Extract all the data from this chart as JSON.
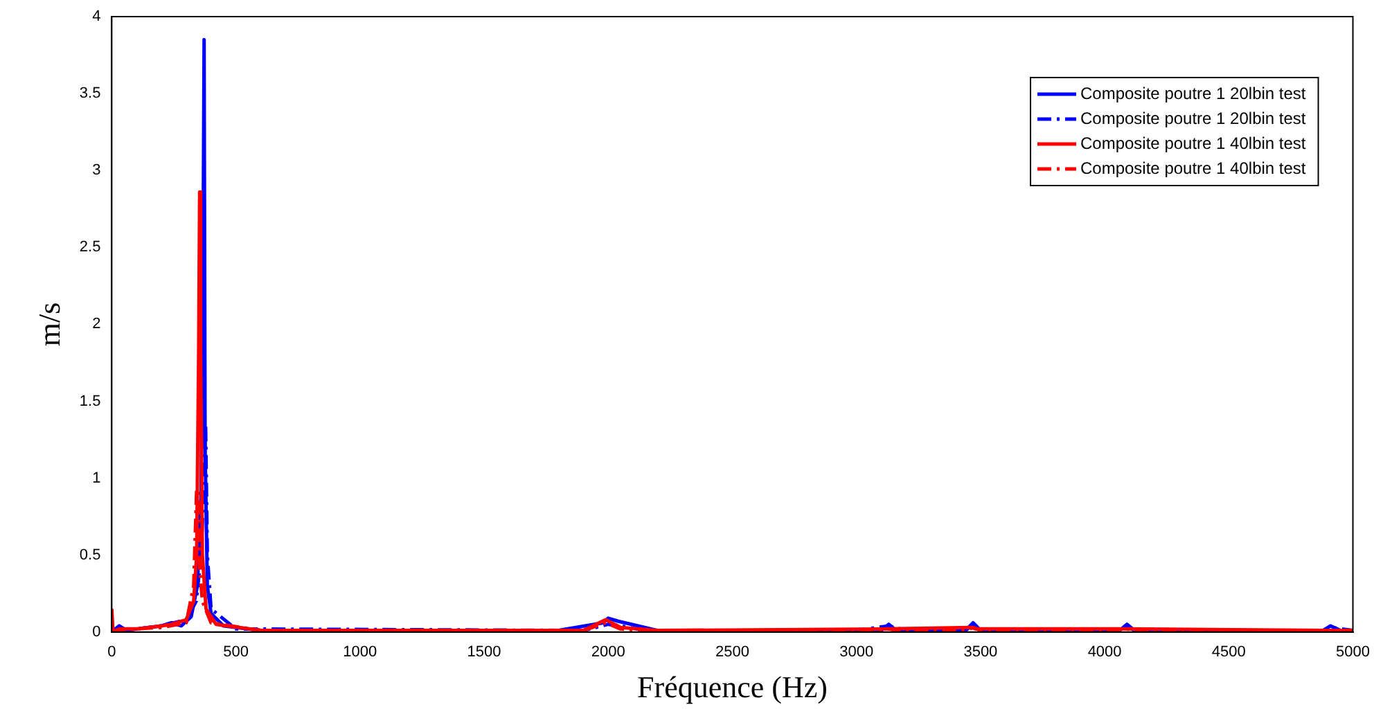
{
  "chart_data": {
    "type": "line",
    "xlabel": "Fréquence (Hz)",
    "ylabel": "m/s",
    "xlim": [
      0,
      5000
    ],
    "ylim": [
      0,
      4
    ],
    "xticks": [
      0,
      500,
      1000,
      1500,
      2000,
      2500,
      3000,
      3500,
      4000,
      4500,
      5000
    ],
    "yticks": [
      0,
      0.5,
      1,
      1.5,
      2,
      2.5,
      3,
      3.5,
      4
    ],
    "grid": false,
    "legend": "top right",
    "marker": "none",
    "series": [
      {
        "name": "Composite poutre 1 20lbin test",
        "color": "#0000ff",
        "line_style": "solid",
        "x": [
          0,
          30,
          60,
          100,
          200,
          240,
          280,
          320,
          345,
          360,
          368,
          372,
          376,
          385,
          400,
          450,
          600,
          1800,
          1980,
          2000,
          2040,
          2200,
          3100,
          3130,
          3160,
          3440,
          3470,
          3500,
          4060,
          4090,
          4120,
          4880,
          4910,
          4950,
          5000
        ],
        "values": [
          0.0,
          0.04,
          0.01,
          0.02,
          0.04,
          0.06,
          0.04,
          0.1,
          0.3,
          0.9,
          2.5,
          3.85,
          1.2,
          0.3,
          0.12,
          0.04,
          0.01,
          0.01,
          0.06,
          0.09,
          0.07,
          0.01,
          0.01,
          0.05,
          0.01,
          0.01,
          0.06,
          0.01,
          0.01,
          0.05,
          0.01,
          0.01,
          0.04,
          0.01,
          0.01
        ]
      },
      {
        "name": "Composite poutre 1 20lbin test",
        "color": "#0000ff",
        "line_style": "dashed",
        "x": [
          0,
          100,
          200,
          300,
          340,
          360,
          372,
          378,
          385,
          400,
          500,
          1900,
          2000,
          2050,
          2150,
          3000,
          3130,
          3200,
          3440,
          3470,
          3500,
          4060,
          4090,
          4120,
          4880,
          4910,
          5000
        ],
        "values": [
          0.0,
          0.02,
          0.04,
          0.08,
          0.2,
          0.5,
          1.0,
          1.35,
          0.5,
          0.15,
          0.02,
          0.01,
          0.05,
          0.04,
          0.01,
          0.01,
          0.04,
          0.01,
          0.01,
          0.05,
          0.01,
          0.01,
          0.04,
          0.01,
          0.01,
          0.03,
          0.01
        ]
      },
      {
        "name": "Composite poutre 1 40lbin test",
        "color": "#ff0000",
        "line_style": "solid",
        "x": [
          0,
          5,
          30,
          100,
          200,
          240,
          300,
          330,
          342,
          350,
          354,
          358,
          365,
          380,
          420,
          600,
          1900,
          1990,
          2050,
          2200,
          3130,
          3460,
          3480,
          4090,
          4900,
          5000
        ],
        "values": [
          0.15,
          0.0,
          0.02,
          0.02,
          0.04,
          0.05,
          0.08,
          0.2,
          0.5,
          1.8,
          2.86,
          1.8,
          0.5,
          0.15,
          0.05,
          0.01,
          0.01,
          0.08,
          0.03,
          0.01,
          0.02,
          0.03,
          0.02,
          0.02,
          0.01,
          0.01
        ]
      },
      {
        "name": "Composite poutre 1 40lbin test",
        "color": "#ff0000",
        "line_style": "dashed",
        "x": [
          0,
          100,
          200,
          300,
          330,
          342,
          348,
          355,
          365,
          400,
          600,
          1900,
          1990,
          2050,
          2150,
          3100,
          3130,
          3160,
          3440,
          3470,
          3500,
          4060,
          4090,
          4120,
          5000
        ],
        "values": [
          0.0,
          0.02,
          0.03,
          0.06,
          0.3,
          0.93,
          0.9,
          0.4,
          0.2,
          0.06,
          0.01,
          0.01,
          0.06,
          0.02,
          0.01,
          0.01,
          0.02,
          0.01,
          0.01,
          0.03,
          0.01,
          0.01,
          0.02,
          0.01,
          0.01
        ]
      }
    ]
  }
}
